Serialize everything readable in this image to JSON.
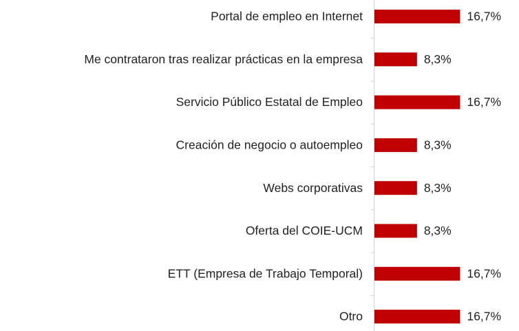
{
  "chart_data": {
    "type": "bar",
    "orientation": "horizontal",
    "categories": [
      "Portal de empleo en Internet",
      "Me contrataron tras realizar prácticas en la empresa",
      "Servicio Público Estatal de Empleo",
      "Creación de negocio o autoempleo",
      "Webs corporativas",
      "Oferta del COIE-UCM",
      "ETT (Empresa de Trabajo Temporal)",
      "Otro"
    ],
    "values": [
      16.7,
      8.3,
      16.7,
      8.3,
      8.3,
      8.3,
      16.7,
      16.7
    ],
    "value_labels": [
      "16,7%",
      "8,3%",
      "16,7%",
      "8,3%",
      "8,3%",
      "8,3%",
      "16,7%",
      "16,7%"
    ],
    "color": "#c00000",
    "xlim": [
      0,
      20
    ]
  }
}
